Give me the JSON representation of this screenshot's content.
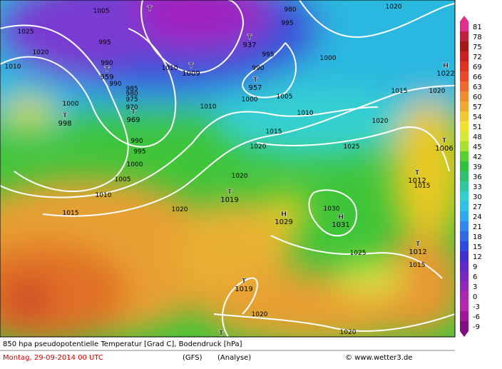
{
  "footer": {
    "title": "850 hpa pseudopotentielle Temperatur [Grad C], Bodendruck [hPa]",
    "date": "Montag, 29-09-2014  00 UTC",
    "model": "(GFS)",
    "run": "(Analyse)",
    "credit": "© www.wetter3.de"
  },
  "scale": {
    "labels": [
      81,
      78,
      75,
      72,
      69,
      66,
      63,
      60,
      57,
      54,
      51,
      48,
      45,
      42,
      39,
      36,
      33,
      30,
      27,
      24,
      21,
      18,
      15,
      12,
      9,
      6,
      3,
      0,
      -3,
      -6,
      -9
    ]
  },
  "centers": [
    {
      "symbol": "T",
      "value": 998
    },
    {
      "symbol": "T",
      "value": 969
    },
    {
      "symbol": "T",
      "value": 959
    },
    {
      "symbol": "T"
    },
    {
      "symbol": "T",
      "value": 1009
    },
    {
      "symbol": "T",
      "value": 937
    },
    {
      "symbol": "T",
      "value": 957
    },
    {
      "symbol": "H",
      "value": 1022
    },
    {
      "symbol": "T",
      "value": 1006
    },
    {
      "symbol": "T",
      "value": 1012
    },
    {
      "symbol": "T",
      "value": 1019
    },
    {
      "symbol": "H",
      "value": 1029
    },
    {
      "symbol": "H",
      "value": 1031
    },
    {
      "symbol": "T",
      "value": 1012
    },
    {
      "symbol": "T",
      "value": 1019
    },
    {
      "symbol": "T"
    }
  ],
  "isobars": [
    "1005",
    "1025",
    "1020",
    "1010",
    "995",
    "990",
    "990",
    "985",
    "980",
    "975",
    "970",
    "1000",
    "990",
    "995",
    "1000",
    "1005",
    "1010",
    "1015",
    "1020",
    "1010",
    "1010",
    "1000",
    "995",
    "990",
    "1005",
    "1010",
    "1015",
    "1020",
    "1025",
    "1020",
    "1015",
    "1020",
    "1000",
    "995",
    "980",
    "1020",
    "1020",
    "1030",
    "1025",
    "1015",
    "1015",
    "1020",
    "1020"
  ]
}
